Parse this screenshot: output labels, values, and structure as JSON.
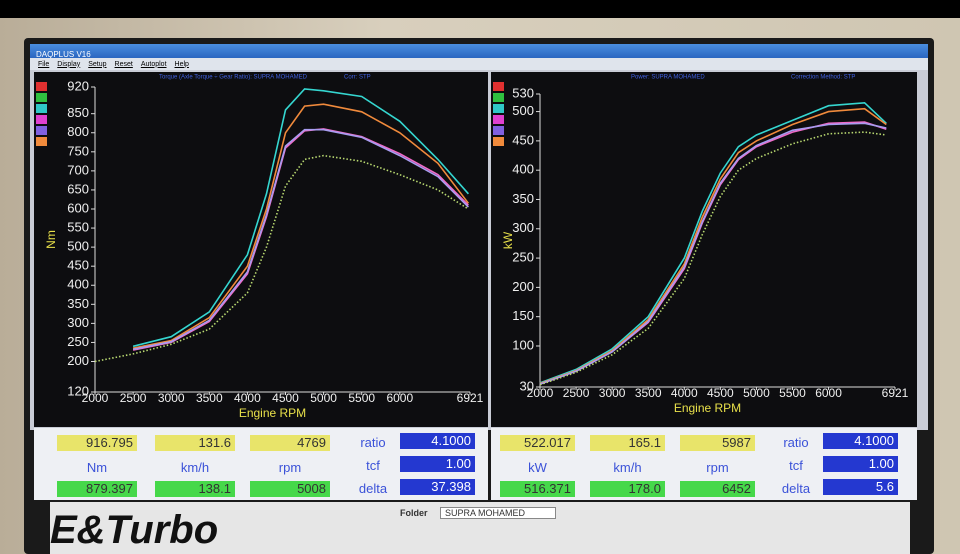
{
  "window": {
    "title": "DAQPLUS V16",
    "menu": [
      "File",
      "Display",
      "Setup",
      "Reset",
      "Autoplot",
      "Help"
    ]
  },
  "chart_data": [
    {
      "type": "line",
      "title": "Torque (Axle Torque ÷ Gear Ratio): SUPRA MOHAMED",
      "subtitle": "Corr: STP",
      "x_label": "Engine RPM",
      "y_label": "Nm",
      "x": [
        2000,
        2500,
        3000,
        3500,
        4000,
        4250,
        4500,
        4750,
        5000,
        5500,
        6000,
        6500,
        6900
      ],
      "xlim": [
        2000,
        6921
      ],
      "xticks": [
        2000,
        2500,
        3000,
        3500,
        4000,
        4500,
        5000,
        5500,
        6000,
        6921
      ],
      "ylim": [
        120,
        920
      ],
      "yticks": [
        120,
        200,
        250,
        300,
        350,
        400,
        450,
        500,
        550,
        600,
        650,
        700,
        750,
        800,
        850,
        920
      ],
      "series": [
        {
          "color": "#35d6d0",
          "values": [
            null,
            240,
            265,
            330,
            480,
            640,
            860,
            915,
            910,
            895,
            830,
            730,
            640
          ]
        },
        {
          "color": "#f08a3c",
          "values": [
            null,
            235,
            255,
            315,
            450,
            600,
            800,
            870,
            875,
            855,
            800,
            720,
            615
          ]
        },
        {
          "color": "#f06ac8",
          "values": [
            null,
            230,
            250,
            305,
            430,
            580,
            760,
            805,
            810,
            790,
            745,
            690,
            610
          ]
        },
        {
          "color": "#a89cf0",
          "values": [
            null,
            232,
            252,
            308,
            435,
            585,
            765,
            808,
            808,
            788,
            740,
            685,
            605
          ]
        },
        {
          "color": "#b8d870",
          "style": "dotted",
          "values": [
            200,
            220,
            245,
            285,
            380,
            500,
            660,
            730,
            740,
            725,
            690,
            650,
            600
          ]
        }
      ]
    },
    {
      "type": "line",
      "title": "Power: SUPRA MOHAMED",
      "subtitle": "Correction Method: STP",
      "x_label": "Engine RPM",
      "y_label": "kW",
      "x": [
        2000,
        2500,
        3000,
        3500,
        4000,
        4250,
        4500,
        4750,
        5000,
        5500,
        6000,
        6500,
        6800
      ],
      "xlim": [
        2000,
        6921
      ],
      "xticks": [
        2000,
        2500,
        3000,
        3500,
        4000,
        4500,
        5000,
        5500,
        6000,
        6921
      ],
      "ylim": [
        30,
        530
      ],
      "yticks": [
        30,
        100,
        150,
        200,
        250,
        300,
        350,
        400,
        450,
        500,
        530
      ],
      "series": [
        {
          "color": "#35d6d0",
          "values": [
            37,
            60,
            95,
            150,
            250,
            330,
            395,
            440,
            460,
            485,
            510,
            515,
            480
          ]
        },
        {
          "color": "#f08a3c",
          "values": [
            36,
            58,
            92,
            145,
            240,
            320,
            385,
            430,
            450,
            478,
            500,
            505,
            478
          ]
        },
        {
          "color": "#f06ac8",
          "values": [
            35,
            57,
            90,
            140,
            232,
            310,
            375,
            418,
            440,
            465,
            480,
            482,
            470
          ]
        },
        {
          "color": "#a89cf0",
          "values": [
            35,
            57,
            90,
            142,
            235,
            312,
            378,
            420,
            442,
            468,
            478,
            480,
            472
          ]
        },
        {
          "color": "#b8d870",
          "style": "dotted",
          "values": [
            34,
            55,
            85,
            130,
            215,
            290,
            355,
            400,
            420,
            445,
            462,
            465,
            460
          ]
        }
      ]
    }
  ],
  "readouts": [
    {
      "top": [
        "916.795",
        "131.6",
        "4769"
      ],
      "units": [
        "Nm",
        "km/h",
        "rpm"
      ],
      "bottom": [
        "879.397",
        "138.1",
        "5008"
      ],
      "labels": [
        "ratio",
        "tcf",
        "delta"
      ],
      "settings": [
        "4.1000",
        "1.00",
        "37.398"
      ]
    },
    {
      "top": [
        "522.017",
        "165.1",
        "5987"
      ],
      "units": [
        "kW",
        "km/h",
        "rpm"
      ],
      "bottom": [
        "516.371",
        "178.0",
        "6452"
      ],
      "labels": [
        "ratio",
        "tcf",
        "delta"
      ],
      "settings": [
        "4.1000",
        "1.00",
        "5.6"
      ]
    }
  ],
  "footer": {
    "folder_label": "Folder",
    "folder": "SUPRA MOHAMED"
  }
}
